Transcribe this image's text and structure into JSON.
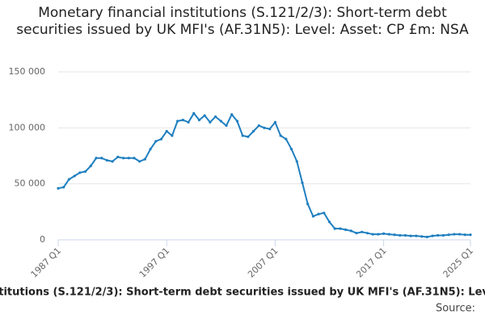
{
  "chart_data": {
    "type": "line",
    "title": "Monetary financial institutions (S.121/2/3): Short-term debt securities issued by UK MFI's (AF.31N5): Level: Asset: CP £m: NSA",
    "source": "Source:",
    "x": [
      1987,
      1987.5,
      1988,
      1988.5,
      1989,
      1989.5,
      1990,
      1990.5,
      1991,
      1991.5,
      1992,
      1992.5,
      1993,
      1993.5,
      1994,
      1994.5,
      1995,
      1995.5,
      1996,
      1996.5,
      1997,
      1997.5,
      1998,
      1998.5,
      1999,
      1999.5,
      2000,
      2000.5,
      2001,
      2001.5,
      2002,
      2002.5,
      2003,
      2003.5,
      2004,
      2004.5,
      2005,
      2005.5,
      2006,
      2006.5,
      2007,
      2007.5,
      2008,
      2008.5,
      2009,
      2009.5,
      2010,
      2010.5,
      2011,
      2011.5,
      2012,
      2012.5,
      2013,
      2013.5,
      2014,
      2014.5,
      2015,
      2015.5,
      2016,
      2016.5,
      2017,
      2017.5,
      2018,
      2018.5,
      2019,
      2019.5,
      2020,
      2020.5,
      2021,
      2021.5,
      2022,
      2022.5,
      2023,
      2023.5,
      2024,
      2024.5,
      2025
    ],
    "series": [
      {
        "color": "#1f7fc0",
        "values": [
          46000,
          47000,
          54000,
          57000,
          60000,
          61000,
          66000,
          73000,
          73000,
          71000,
          70000,
          74000,
          73000,
          73000,
          73000,
          70000,
          72000,
          81000,
          88000,
          90000,
          97000,
          93000,
          106000,
          107000,
          105000,
          113000,
          107000,
          111000,
          105000,
          110000,
          106000,
          102000,
          112000,
          106000,
          93000,
          92000,
          97000,
          102000,
          100000,
          99000,
          105000,
          93000,
          90000,
          81000,
          70000,
          51000,
          32000,
          21000,
          23000,
          24000,
          16000,
          10000,
          10000,
          9000,
          8000,
          6000,
          7000,
          6000,
          5000,
          5000,
          5500,
          5000,
          4500,
          4000,
          4000,
          3500,
          3500,
          3000,
          2500,
          3500,
          4000,
          4000,
          4500,
          5000,
          5000,
          4500,
          4500
        ]
      }
    ],
    "xlim": [
      1987,
      2025
    ],
    "xticks": [
      {
        "value": 1987,
        "label": "1987 Q1"
      },
      {
        "value": 1997,
        "label": "1997 Q1"
      },
      {
        "value": 2007,
        "label": "2007 Q1"
      },
      {
        "value": 2017,
        "label": "2017 Q1"
      },
      {
        "value": 2025,
        "label": "2025 Q1"
      }
    ],
    "ylim": [
      0,
      150000
    ],
    "yticks": [
      0,
      {
        "value": 50000,
        "label": "50 000"
      },
      {
        "value": 100000,
        "label": "100 000"
      },
      {
        "value": 150000,
        "label": "150 000"
      }
    ],
    "grid": true
  }
}
